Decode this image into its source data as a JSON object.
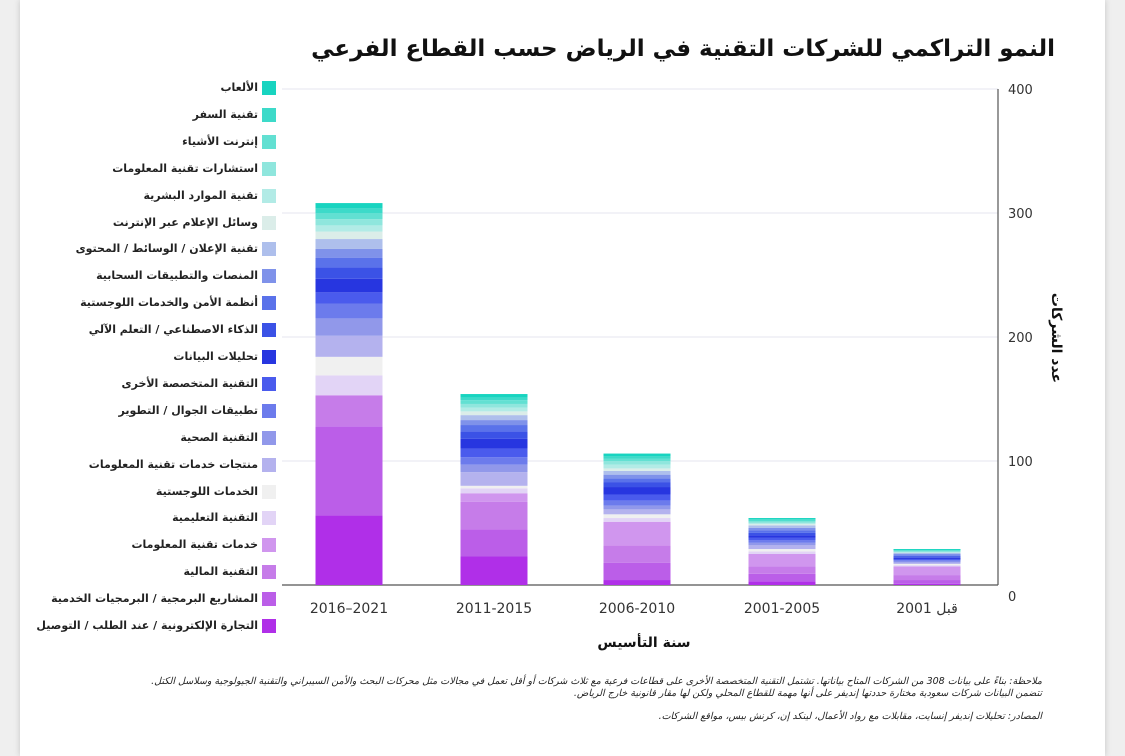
{
  "chart_data": {
    "type": "bar",
    "stacked": true,
    "title": "النمو التراكمي للشركات التقنية في الرياض حسب القطاع الفرعي",
    "xlabel": "سنة التأسيس",
    "ylabel": "عدد الشركات",
    "ylim": [
      0,
      400
    ],
    "yticks": [
      0,
      100,
      200,
      300,
      400
    ],
    "y_axis_side": "right",
    "legend_position": "left",
    "categories": [
      "2016–2021",
      "2011-2015",
      "2006-2010",
      "2001-2005",
      "قبل 2001"
    ],
    "series": [
      {
        "name": "التجارة الإلكترونية / عند الطلب / التوصيل",
        "color": "#b02fe8",
        "values": [
          56,
          23,
          4,
          3,
          1
        ]
      },
      {
        "name": "المشاريع البرمجية / البرمجيات الخدمية",
        "color": "#bb5ee8",
        "values": [
          72,
          22,
          14,
          6,
          3
        ]
      },
      {
        "name": "التقنية المالية",
        "color": "#c67ce9",
        "values": [
          25,
          22,
          14,
          6,
          4
        ]
      },
      {
        "name": "خدمات تقنية المعلومات",
        "color": "#d096ee",
        "values": [
          0,
          7,
          19,
          10,
          7
        ]
      },
      {
        "name": "التقنية التعليمية",
        "color": "#e2d4f6",
        "values": [
          16,
          4,
          3,
          2,
          1
        ]
      },
      {
        "name": "الخدمات اللوجستية",
        "color": "#f0f0f0",
        "values": [
          15,
          2,
          3,
          2,
          1
        ]
      },
      {
        "name": "منتجات خدمات تقنية المعلومات",
        "color": "#b4b2ee",
        "values": [
          17,
          11,
          4,
          3,
          1
        ]
      },
      {
        "name": "التقنية الصحية",
        "color": "#9198ea",
        "values": [
          14,
          6,
          3,
          2,
          1
        ]
      },
      {
        "name": "تطبيقات الجوال / التطوير",
        "color": "#6c7bec",
        "values": [
          12,
          6,
          4,
          2,
          1
        ]
      },
      {
        "name": "التقنية المتخصصة الأخرى",
        "color": "#4a5bed",
        "values": [
          9,
          7,
          5,
          2,
          1
        ]
      },
      {
        "name": "تحليلات البيانات",
        "color": "#2736e0",
        "values": [
          11,
          8,
          6,
          2,
          1
        ]
      },
      {
        "name": "الذكاء الاصطناعي / التعلم الآلي",
        "color": "#3b52e6",
        "values": [
          9,
          6,
          4,
          2,
          1
        ]
      },
      {
        "name": "أنظمة الأمن والخدمات اللوجستية",
        "color": "#5a72ea",
        "values": [
          8,
          5,
          3,
          2,
          1
        ]
      },
      {
        "name": "المنصات والتطبيقات السحابية",
        "color": "#7f92ea",
        "values": [
          7,
          4,
          3,
          2,
          1
        ]
      },
      {
        "name": "تقنية الإعلان / الوسائط / المحتوى",
        "color": "#aebfec",
        "values": [
          8,
          4,
          3,
          2,
          1
        ]
      },
      {
        "name": "وسائل الإعلام عبر الإنترنت",
        "color": "#dbede9",
        "values": [
          6,
          3,
          2,
          1,
          0
        ]
      },
      {
        "name": "تقنية الموارد البشرية",
        "color": "#b2ebe6",
        "values": [
          5,
          3,
          3,
          1,
          1
        ]
      },
      {
        "name": "استشارات تقنية المعلومات",
        "color": "#8fe6dd",
        "values": [
          5,
          3,
          3,
          1,
          0
        ]
      },
      {
        "name": "إنترنت الأشياء",
        "color": "#62e0d2",
        "values": [
          5,
          3,
          2,
          1,
          1
        ]
      },
      {
        "name": "تقنية السفر",
        "color": "#3ddac9",
        "values": [
          4,
          2,
          2,
          1,
          0
        ]
      },
      {
        "name": "الألعاب",
        "color": "#18d4c0",
        "values": [
          4,
          3,
          2,
          1,
          1
        ]
      }
    ]
  },
  "notes": {
    "note_line1": "ملاحظة: بناءً على بيانات 308 من الشركات المتاح بياناتها. تشتمل التقنية المتخصصة الأخرى على قطاعات فرعية مع ثلاث شركات أو أقل تعمل في مجالات مثل محركات البحث والأمن السيبراني والتقنية الجيولوجية وسلاسل الكتل.",
    "note_line2": "تتضمن البيانات شركات سعودية مختارة حددتها إنديفر على أنها مهمة للقطاع المحلي ولكن لها مقار قانونية خارج الرياض.",
    "source": "المصادر: تحليلات إنديفر إنسايت، مقابلات مع رواد الأعمال، لينكد إن، كرنش بيس، مواقع الشركات."
  }
}
